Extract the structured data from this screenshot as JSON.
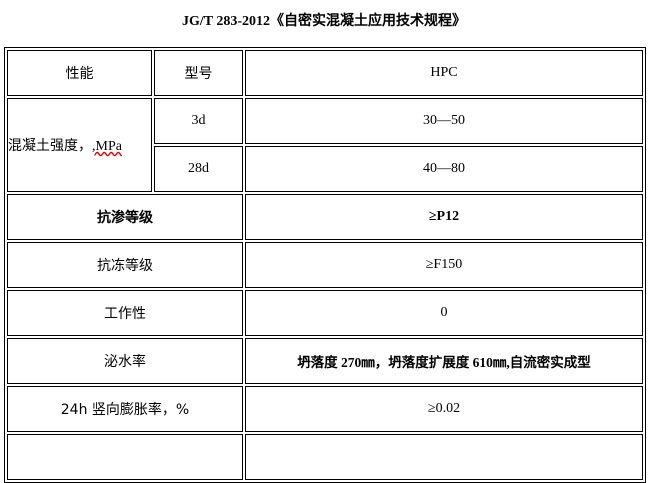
{
  "title": "JG/T 283-2012《自密实混凝土应用技术规程》",
  "table": {
    "header": {
      "col1": "性能",
      "col2": "型号",
      "col3": "HPC"
    },
    "strength": {
      "label_main": "混凝土强度，",
      "label_unit": ",MPa",
      "rows": [
        {
          "age": "3d",
          "value": "30—50"
        },
        {
          "age": "28d",
          "value": "40—80"
        }
      ]
    },
    "rows": [
      {
        "label": "抗渗等级",
        "value": "≥P12",
        "bold": true
      },
      {
        "label": "抗冻等级",
        "value": "≥F150"
      },
      {
        "label": "工作性",
        "value": "0"
      },
      {
        "label": "泌水率",
        "value": "坍落度 270㎜，坍落度扩展度 610㎜,自流密实成型",
        "bold_value": true
      },
      {
        "label": "24h 竖向膨胀率，%",
        "value": "≥0.02"
      }
    ]
  }
}
